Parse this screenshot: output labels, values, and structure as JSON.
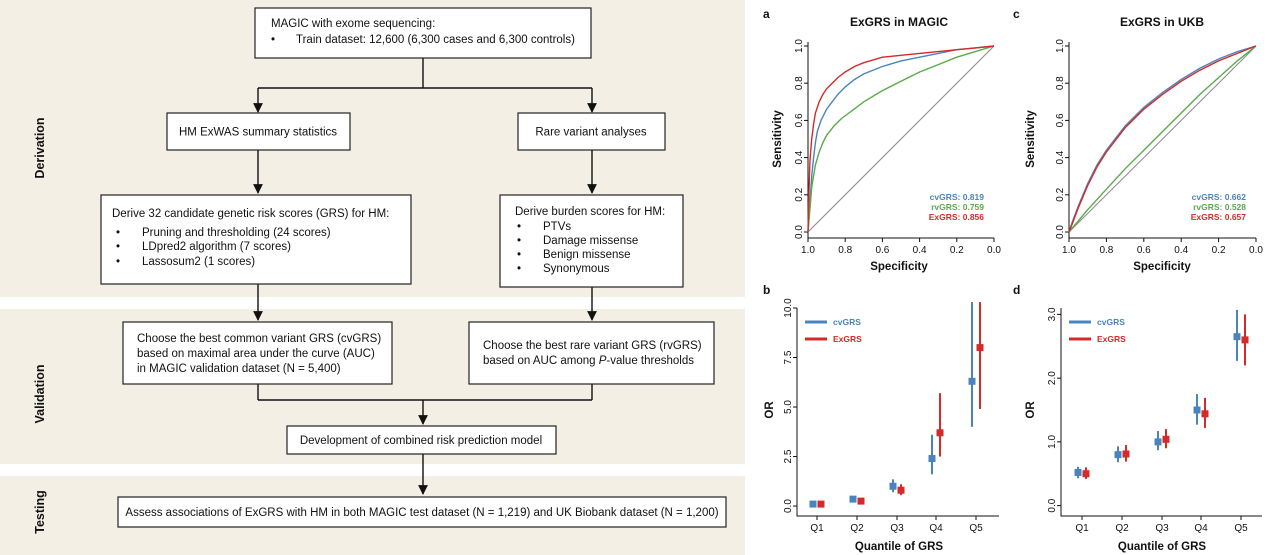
{
  "flowchart": {
    "phases": [
      "Derivation",
      "Validation",
      "Testing"
    ],
    "colors": {
      "band": "#f4efe4",
      "arrow": "#111111"
    },
    "box_magic": {
      "title": "MAGIC with exome sequencing:",
      "bullet": "Train dataset: 12,600 (6,300 cases and 6,300 controls)"
    },
    "box_exwas": "HM ExWAS summary statistics",
    "box_rare": "Rare variant analyses",
    "box_grs": {
      "title": "Derive 32 candidate genetic risk scores (GRS) for HM:",
      "items": [
        "Pruning and thresholding (24 scores)",
        "LDpred2 algorithm (7 scores)",
        "Lassosum2 (1 scores)"
      ]
    },
    "box_burden": {
      "title": "Derive burden scores for HM:",
      "items": [
        "PTVs",
        "Damage missense",
        "Benign missense",
        "Synonymous"
      ]
    },
    "box_cvgrs": {
      "lines": [
        "Choose the best common variant GRS (cvGRS)",
        "based on maximal area under the curve (AUC)",
        "in MAGIC validation dataset (N = 5,400)"
      ]
    },
    "box_rvgrs": {
      "line1": "Choose the best rare variant GRS (rvGRS)",
      "line2_pre": "based on AUC among ",
      "line2_italic": "P",
      "line2_post": "-value thresholds"
    },
    "box_combined": "Development of combined risk prediction model",
    "box_assess": "Assess associations of ExGRS with HM in both MAGIC test dataset (N = 1,219) and UK Biobank dataset (N = 1,200)"
  },
  "chart_data": [
    {
      "panel": "a",
      "type": "line",
      "title": "ExGRS in MAGIC",
      "xlabel": "Specificity",
      "ylabel": "Sensitivity",
      "xlim": [
        1.0,
        0.0
      ],
      "ylim": [
        0.0,
        1.0
      ],
      "xticks": [
        "1.0",
        "0.8",
        "0.6",
        "0.4",
        "0.2",
        "0.0"
      ],
      "yticks": [
        "0.0",
        "0.2",
        "0.4",
        "0.6",
        "0.8",
        "1.0"
      ],
      "legend_position": "bottom-right",
      "series": [
        {
          "name": "cvGRS",
          "label": "cvGRS: 0.819",
          "color": "#4a84bf",
          "x": [
            1.0,
            0.99,
            0.98,
            0.97,
            0.96,
            0.95,
            0.93,
            0.9,
            0.87,
            0.84,
            0.8,
            0.75,
            0.7,
            0.6,
            0.5,
            0.4,
            0.3,
            0.2,
            0.1,
            0.0
          ],
          "y": [
            0.0,
            0.15,
            0.3,
            0.4,
            0.48,
            0.54,
            0.6,
            0.66,
            0.7,
            0.74,
            0.78,
            0.82,
            0.85,
            0.89,
            0.92,
            0.94,
            0.96,
            0.98,
            0.99,
            1.0
          ]
        },
        {
          "name": "rvGRS",
          "label": "rvGRS: 0.759",
          "color": "#5aaa4a",
          "x": [
            1.0,
            0.99,
            0.98,
            0.96,
            0.94,
            0.92,
            0.9,
            0.86,
            0.82,
            0.78,
            0.74,
            0.7,
            0.6,
            0.5,
            0.4,
            0.3,
            0.2,
            0.1,
            0.0
          ],
          "y": [
            0.0,
            0.12,
            0.24,
            0.36,
            0.43,
            0.48,
            0.52,
            0.57,
            0.61,
            0.64,
            0.67,
            0.7,
            0.76,
            0.81,
            0.86,
            0.9,
            0.94,
            0.97,
            1.0
          ]
        },
        {
          "name": "ExGRS",
          "label": "ExGRS: 0.856",
          "color": "#d42a2a",
          "x": [
            1.0,
            0.995,
            0.99,
            0.98,
            0.97,
            0.96,
            0.94,
            0.92,
            0.9,
            0.87,
            0.84,
            0.8,
            0.75,
            0.7,
            0.6,
            0.5,
            0.4,
            0.3,
            0.2,
            0.1,
            0.0
          ],
          "y": [
            0.0,
            0.2,
            0.38,
            0.5,
            0.58,
            0.64,
            0.7,
            0.74,
            0.77,
            0.8,
            0.83,
            0.86,
            0.89,
            0.91,
            0.94,
            0.95,
            0.96,
            0.97,
            0.98,
            0.99,
            1.0
          ]
        }
      ]
    },
    {
      "panel": "c",
      "type": "line",
      "title": "ExGRS in UKB",
      "xlabel": "Specificity",
      "ylabel": "Sensitivity",
      "xlim": [
        1.0,
        0.0
      ],
      "ylim": [
        0.0,
        1.0
      ],
      "xticks": [
        "1.0",
        "0.8",
        "0.6",
        "0.4",
        "0.2",
        "0.0"
      ],
      "yticks": [
        "0.0",
        "0.2",
        "0.4",
        "0.6",
        "0.8",
        "1.0"
      ],
      "legend_position": "bottom-right",
      "series": [
        {
          "name": "cvGRS",
          "label": "cvGRS: 0.662",
          "color": "#4a84bf",
          "x": [
            1.0,
            0.98,
            0.95,
            0.9,
            0.85,
            0.8,
            0.7,
            0.6,
            0.5,
            0.4,
            0.3,
            0.2,
            0.1,
            0.0
          ],
          "y": [
            0.0,
            0.06,
            0.14,
            0.26,
            0.36,
            0.44,
            0.57,
            0.67,
            0.75,
            0.82,
            0.88,
            0.93,
            0.97,
            1.0
          ]
        },
        {
          "name": "rvGRS",
          "label": "rvGRS: 0.528",
          "color": "#5aaa4a",
          "x": [
            1.0,
            0.9,
            0.8,
            0.7,
            0.6,
            0.5,
            0.4,
            0.3,
            0.2,
            0.1,
            0.0
          ],
          "y": [
            0.0,
            0.12,
            0.23,
            0.34,
            0.44,
            0.54,
            0.64,
            0.74,
            0.83,
            0.92,
            1.0
          ]
        },
        {
          "name": "ExGRS",
          "label": "ExGRS: 0.657",
          "color": "#d42a2a",
          "x": [
            1.0,
            0.98,
            0.95,
            0.9,
            0.85,
            0.8,
            0.7,
            0.6,
            0.5,
            0.4,
            0.3,
            0.2,
            0.1,
            0.0
          ],
          "y": [
            0.0,
            0.05,
            0.13,
            0.25,
            0.35,
            0.43,
            0.56,
            0.66,
            0.74,
            0.81,
            0.87,
            0.92,
            0.96,
            1.0
          ]
        }
      ]
    },
    {
      "panel": "b",
      "type": "scatter",
      "xlabel": "Quantile of GRS",
      "ylabel": "OR",
      "categories": [
        "Q1",
        "Q2",
        "Q3",
        "Q4",
        "Q5"
      ],
      "ylim": [
        -0.3,
        10.0
      ],
      "yticks": [
        "0.0",
        "2.5",
        "5.0",
        "7.5",
        "10.0"
      ],
      "legend_position": "top-left",
      "series": [
        {
          "name": "cvGRS",
          "color": "#4a84bf",
          "values": [
            0.1,
            0.35,
            1.0,
            2.4,
            6.3
          ],
          "lower": [
            0.05,
            0.2,
            0.7,
            1.6,
            4.0
          ],
          "upper": [
            0.2,
            0.5,
            1.35,
            3.6,
            10.3
          ]
        },
        {
          "name": "ExGRS",
          "color": "#d42a2a",
          "values": [
            0.1,
            0.25,
            0.8,
            3.7,
            8.0
          ],
          "lower": [
            0.05,
            0.15,
            0.55,
            2.5,
            4.9
          ],
          "upper": [
            0.2,
            0.4,
            1.1,
            5.7,
            10.3
          ]
        }
      ]
    },
    {
      "panel": "d",
      "type": "scatter",
      "xlabel": "Quantile of GRS",
      "ylabel": "OR",
      "categories": [
        "Q1",
        "Q2",
        "Q3",
        "Q4",
        "Q5"
      ],
      "ylim": [
        -0.1,
        3.1
      ],
      "yticks": [
        "0.0",
        "1.0",
        "2.0",
        "3.0"
      ],
      "legend_position": "top-left",
      "series": [
        {
          "name": "cvGRS",
          "color": "#4a84bf",
          "values": [
            0.52,
            0.8,
            1.0,
            1.5,
            2.65
          ],
          "lower": [
            0.43,
            0.68,
            0.87,
            1.27,
            2.27
          ],
          "upper": [
            0.61,
            0.93,
            1.17,
            1.75,
            3.07
          ]
        },
        {
          "name": "ExGRS",
          "color": "#d42a2a",
          "values": [
            0.5,
            0.81,
            1.04,
            1.44,
            2.6
          ],
          "lower": [
            0.42,
            0.69,
            0.9,
            1.22,
            2.2
          ],
          "upper": [
            0.6,
            0.95,
            1.2,
            1.69,
            3.0
          ]
        }
      ]
    }
  ]
}
